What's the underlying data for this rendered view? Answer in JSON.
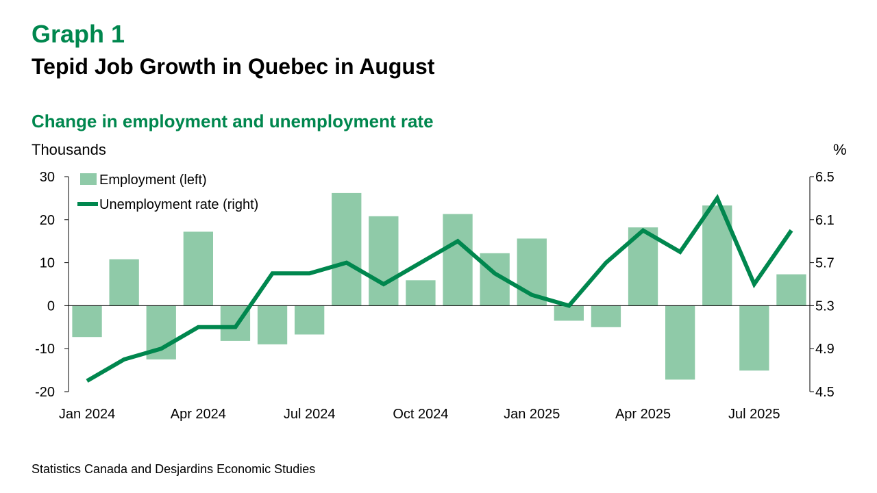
{
  "header": {
    "graph_number": "Graph 1",
    "title": "Tepid Job Growth in Quebec in August",
    "subtitle": "Change in employment and unemployment rate"
  },
  "axes_units": {
    "left": "Thousands",
    "right": "%"
  },
  "source": "Statistics Canada and Desjardins Economic Studies",
  "colors": {
    "brand_green": "#00874E",
    "bar_green": "#8FCAA8",
    "line_green": "#00874E"
  },
  "chart_data": {
    "type": "bar+line",
    "title": "Change in employment and unemployment rate",
    "x": [
      "Jan 2024",
      "Feb 2024",
      "Mar 2024",
      "Apr 2024",
      "May 2024",
      "Jun 2024",
      "Jul 2024",
      "Aug 2024",
      "Sep 2024",
      "Oct 2024",
      "Nov 2024",
      "Dec 2024",
      "Jan 2025",
      "Feb 2025",
      "Mar 2025",
      "Apr 2025",
      "May 2025",
      "Jun 2025",
      "Jul 2025",
      "Aug 2025"
    ],
    "x_tick_labels": [
      "Jan 2024",
      "Apr 2024",
      "Jul 2024",
      "Oct 2024",
      "Jan 2025",
      "Apr 2025",
      "Jul 2025"
    ],
    "x_tick_indices": [
      0,
      3,
      6,
      9,
      12,
      15,
      18
    ],
    "left_axis": {
      "label": "Thousands",
      "range": [
        -20,
        30
      ],
      "ticks": [
        -20,
        -10,
        0,
        10,
        20,
        30
      ]
    },
    "right_axis": {
      "label": "%",
      "range": [
        4.5,
        6.5
      ],
      "ticks": [
        4.5,
        4.9,
        5.3,
        5.7,
        6.1,
        6.5
      ]
    },
    "series": [
      {
        "name": "Employment (left)",
        "type": "bar",
        "axis": "left",
        "values": [
          -7.3,
          10.8,
          -12.5,
          17.2,
          -8.2,
          -9.0,
          -6.7,
          26.2,
          20.8,
          5.9,
          21.3,
          12.2,
          15.6,
          -3.5,
          -5.0,
          18.2,
          -17.2,
          23.3,
          -15.1,
          7.3
        ]
      },
      {
        "name": "Unemployment rate (right)",
        "type": "line",
        "axis": "right",
        "values": [
          4.6,
          4.8,
          4.9,
          5.1,
          5.1,
          5.6,
          5.6,
          5.7,
          5.5,
          5.7,
          5.9,
          5.6,
          5.4,
          5.3,
          5.7,
          6.0,
          5.8,
          6.3,
          5.5,
          6.0
        ]
      }
    ],
    "legend_position": "top-left",
    "grid": false
  }
}
